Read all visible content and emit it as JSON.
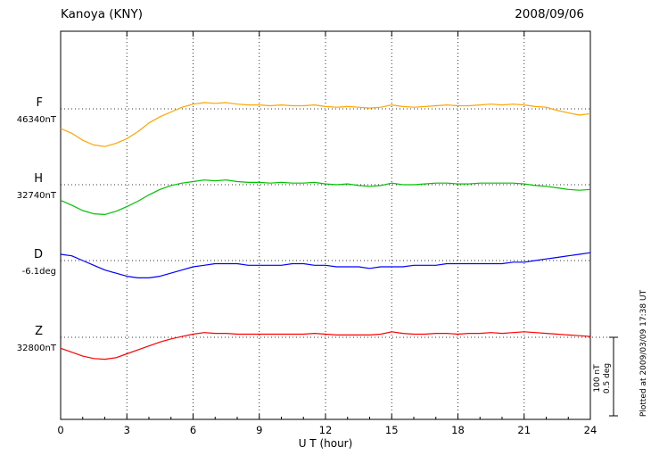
{
  "header": {
    "title": "Kanoya (KNY)",
    "date": "2008/09/06"
  },
  "axis": {
    "xlabel": "U T (hour)",
    "ticks": [
      0,
      3,
      6,
      9,
      12,
      15,
      18,
      21,
      24
    ]
  },
  "scale_bar": {
    "labels": [
      "100 nT",
      "0.5 deg"
    ]
  },
  "footer_note": "Plotted at 2009/03/09 17:38 UT",
  "colors": {
    "F": "#FFA500",
    "H": "#00C000",
    "D": "#0000FF",
    "Z": "#FF0000",
    "grid": "#333333",
    "frame": "#000000"
  },
  "chart_data": {
    "type": "line",
    "title": "Kanoya (KNY)",
    "date": "2008/09/06",
    "xlabel": "U T (hour)",
    "x_range": [
      0,
      24
    ],
    "x_ticks": [
      0,
      3,
      6,
      9,
      12,
      15,
      18,
      21,
      24
    ],
    "grid": "dotted vertical lines every 3 hours; dotted horizontal baseline per trace",
    "legend_position": "left labels per trace",
    "scale": {
      "bar_nT": 100,
      "bar_deg": 0.5
    },
    "plotted_at": "Plotted at 2009/03/09 17:38 UT",
    "x": [
      0,
      0.5,
      1,
      1.5,
      2,
      2.5,
      3,
      3.5,
      4,
      4.5,
      5,
      5.5,
      6,
      6.5,
      7,
      7.5,
      8,
      8.5,
      9,
      9.5,
      10,
      10.5,
      11,
      11.5,
      12,
      12.5,
      13,
      13.5,
      14,
      14.5,
      15,
      15.5,
      16,
      16.5,
      17,
      17.5,
      18,
      18.5,
      19,
      19.5,
      20,
      20.5,
      21,
      21.5,
      22,
      22.5,
      23,
      23.5,
      24
    ],
    "series": [
      {
        "name": "F",
        "baseline_label": "46340nT",
        "baseline_value": 46340,
        "unit": "nT",
        "color": "#FFA500",
        "offsets": [
          -25,
          -31,
          -40,
          -46,
          -48,
          -44,
          -38,
          -29,
          -18,
          -10,
          -4,
          2,
          6,
          8,
          7,
          8,
          6,
          5,
          5,
          4,
          5,
          4,
          4,
          5,
          3,
          2,
          3,
          2,
          1,
          2,
          5,
          3,
          2,
          3,
          4,
          5,
          4,
          4,
          5,
          6,
          5,
          6,
          5,
          3,
          2,
          -2,
          -5,
          -8,
          -6
        ]
      },
      {
        "name": "H",
        "baseline_label": "32740nT",
        "baseline_value": 32740,
        "unit": "nT",
        "color": "#00C000",
        "offsets": [
          -20,
          -26,
          -33,
          -37,
          -38,
          -34,
          -28,
          -21,
          -13,
          -6,
          -1,
          2,
          4,
          6,
          5,
          6,
          4,
          3,
          3,
          2,
          3,
          2,
          2,
          3,
          1,
          0,
          1,
          -1,
          -2,
          -1,
          2,
          0,
          0,
          1,
          2,
          2,
          1,
          1,
          2,
          2,
          2,
          2,
          1,
          -1,
          -2,
          -4,
          -6,
          -7,
          -6
        ]
      },
      {
        "name": "D",
        "baseline_label": "-6.1deg",
        "baseline_value": -6.1,
        "unit": "deg",
        "color": "#0000FF",
        "offsets": [
          0.04,
          0.03,
          0.0,
          -0.03,
          -0.06,
          -0.08,
          -0.1,
          -0.11,
          -0.11,
          -0.1,
          -0.08,
          -0.06,
          -0.04,
          -0.03,
          -0.02,
          -0.02,
          -0.02,
          -0.03,
          -0.03,
          -0.03,
          -0.03,
          -0.02,
          -0.02,
          -0.03,
          -0.03,
          -0.04,
          -0.04,
          -0.04,
          -0.05,
          -0.04,
          -0.04,
          -0.04,
          -0.03,
          -0.03,
          -0.03,
          -0.02,
          -0.02,
          -0.02,
          -0.02,
          -0.02,
          -0.02,
          -0.01,
          -0.01,
          0.0,
          0.01,
          0.02,
          0.03,
          0.04,
          0.05
        ]
      },
      {
        "name": "Z",
        "baseline_label": "32800nT",
        "baseline_value": 32800,
        "unit": "nT",
        "color": "#FF0000",
        "offsets": [
          -14,
          -19,
          -24,
          -27,
          -28,
          -26,
          -21,
          -16,
          -11,
          -6,
          -2,
          1,
          4,
          6,
          5,
          5,
          4,
          4,
          4,
          4,
          4,
          4,
          4,
          5,
          4,
          3,
          3,
          3,
          3,
          4,
          7,
          5,
          4,
          4,
          5,
          5,
          4,
          5,
          5,
          6,
          5,
          6,
          7,
          6,
          5,
          4,
          3,
          2,
          1
        ]
      }
    ]
  }
}
